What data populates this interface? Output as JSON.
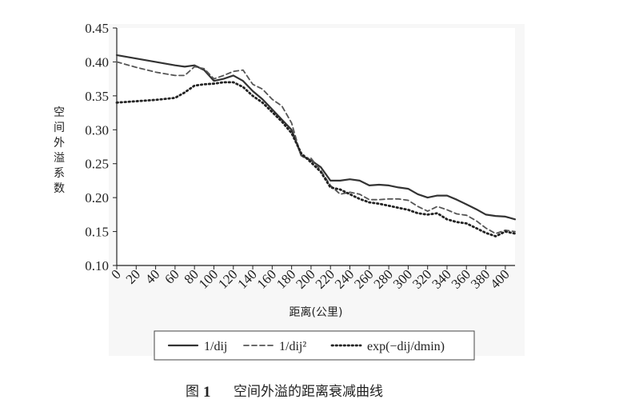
{
  "chart_data": {
    "type": "line",
    "title": "",
    "xlabel": "距离(公里)",
    "ylabel": "空间外溢系数",
    "xlim": [
      0,
      410
    ],
    "ylim": [
      0.1,
      0.45
    ],
    "y_ticks": [
      "0.10",
      "0.15",
      "0.20",
      "0.25",
      "0.30",
      "0.35",
      "0.40",
      "0.45"
    ],
    "x_ticks": [
      "0",
      "20",
      "40",
      "60",
      "80",
      "100",
      "120",
      "140",
      "160",
      "180",
      "200",
      "220",
      "240",
      "260",
      "280",
      "300",
      "320",
      "340",
      "360",
      "380",
      "400"
    ],
    "grid": false,
    "legend_position": "bottom",
    "series": [
      {
        "name": "1/dij",
        "style": "solid",
        "color": "#333333",
        "x": [
          0,
          20,
          40,
          60,
          70,
          80,
          90,
          100,
          110,
          120,
          130,
          140,
          150,
          160,
          170,
          180,
          190,
          200,
          210,
          220,
          230,
          240,
          250,
          260,
          270,
          280,
          290,
          300,
          310,
          320,
          330,
          340,
          350,
          360,
          370,
          380,
          390,
          400,
          410
        ],
        "y": [
          0.41,
          0.405,
          0.4,
          0.395,
          0.393,
          0.395,
          0.388,
          0.372,
          0.375,
          0.38,
          0.372,
          0.357,
          0.345,
          0.33,
          0.315,
          0.3,
          0.262,
          0.255,
          0.245,
          0.225,
          0.225,
          0.227,
          0.225,
          0.218,
          0.219,
          0.218,
          0.215,
          0.213,
          0.205,
          0.2,
          0.203,
          0.203,
          0.197,
          0.19,
          0.183,
          0.175,
          0.173,
          0.172,
          0.168
        ]
      },
      {
        "name": "1/dij²",
        "style": "dashed",
        "color": "#555555",
        "x": [
          0,
          20,
          40,
          60,
          70,
          80,
          90,
          100,
          110,
          120,
          130,
          140,
          150,
          160,
          170,
          180,
          190,
          200,
          210,
          220,
          230,
          240,
          250,
          260,
          270,
          280,
          290,
          300,
          310,
          320,
          330,
          340,
          350,
          360,
          370,
          380,
          390,
          400,
          410
        ],
        "y": [
          0.4,
          0.392,
          0.385,
          0.38,
          0.38,
          0.393,
          0.39,
          0.375,
          0.38,
          0.386,
          0.388,
          0.367,
          0.36,
          0.345,
          0.335,
          0.31,
          0.26,
          0.258,
          0.24,
          0.218,
          0.205,
          0.208,
          0.205,
          0.197,
          0.197,
          0.198,
          0.198,
          0.196,
          0.187,
          0.18,
          0.187,
          0.182,
          0.176,
          0.174,
          0.166,
          0.155,
          0.147,
          0.152,
          0.15
        ]
      },
      {
        "name": "exp(−dij/dmin)",
        "style": "dotted",
        "color": "#222222",
        "x": [
          0,
          20,
          40,
          60,
          70,
          80,
          90,
          100,
          110,
          120,
          130,
          140,
          150,
          160,
          170,
          180,
          190,
          200,
          210,
          220,
          230,
          240,
          250,
          260,
          270,
          280,
          290,
          300,
          310,
          320,
          330,
          340,
          350,
          360,
          370,
          380,
          390,
          400,
          410
        ],
        "y": [
          0.34,
          0.342,
          0.344,
          0.347,
          0.355,
          0.365,
          0.367,
          0.368,
          0.37,
          0.37,
          0.363,
          0.35,
          0.34,
          0.326,
          0.312,
          0.295,
          0.265,
          0.252,
          0.238,
          0.215,
          0.212,
          0.205,
          0.198,
          0.193,
          0.191,
          0.188,
          0.185,
          0.182,
          0.177,
          0.175,
          0.177,
          0.168,
          0.164,
          0.162,
          0.155,
          0.148,
          0.143,
          0.15,
          0.147
        ]
      }
    ]
  },
  "caption": {
    "prefix": "图",
    "number": "1",
    "text": "空间外溢的距离衰减曲线"
  }
}
